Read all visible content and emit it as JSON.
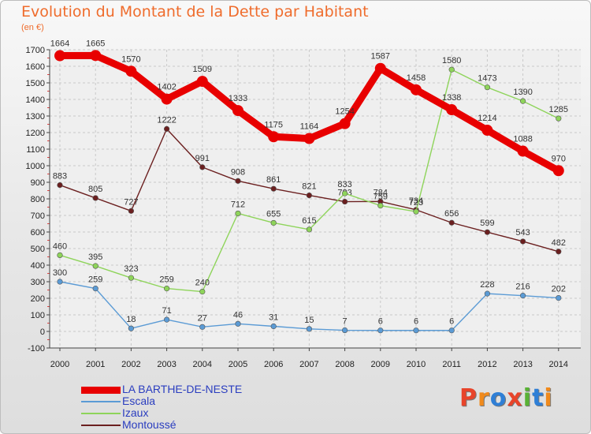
{
  "header": {
    "title": "Evolution du Montant de la Dette par Habitant",
    "unit": "(en €)"
  },
  "logo": {
    "text": "Proxiti",
    "colors": [
      "#e8442a",
      "#f08a1c",
      "#2f7fd6",
      "#e8442a",
      "#59b235",
      "#2f7fd6",
      "#f08a1c"
    ]
  },
  "chart_data": {
    "type": "line",
    "x": [
      "2000",
      "2001",
      "2002",
      "2003",
      "2004",
      "2005",
      "2006",
      "2007",
      "2008",
      "2009",
      "2010",
      "2011",
      "2012",
      "2013",
      "2014"
    ],
    "ylim": [
      -100,
      1700
    ],
    "yticks": [
      -100,
      0,
      100,
      200,
      300,
      400,
      500,
      600,
      700,
      800,
      900,
      1000,
      1100,
      1200,
      1300,
      1400,
      1500,
      1600,
      1700
    ],
    "grid": true,
    "legend": "bottom-left",
    "series": [
      {
        "name": "Montoussé",
        "color": "#6b1f1f",
        "values": [
          883,
          805,
          727,
          1222,
          991,
          908,
          861,
          821,
          783,
          784,
          734,
          656,
          599,
          543,
          482
        ]
      },
      {
        "name": "Izaux",
        "color": "#8ed45a",
        "values": [
          460,
          395,
          323,
          259,
          240,
          712,
          655,
          615,
          833,
          759,
          723,
          1580,
          1473,
          1390,
          1285
        ]
      },
      {
        "name": "Escala",
        "color": "#5b9bd5",
        "values": [
          300,
          259,
          18,
          71,
          27,
          46,
          31,
          15,
          7,
          6,
          6,
          6,
          228,
          216,
          202
        ]
      },
      {
        "name": "LA BARTHE-DE-NESTE",
        "color": "#e80000",
        "values": [
          1664,
          1665,
          1570,
          1402,
          1509,
          1333,
          1175,
          1164,
          1254,
          1587,
          1458,
          1338,
          1214,
          1088,
          970
        ]
      }
    ]
  }
}
